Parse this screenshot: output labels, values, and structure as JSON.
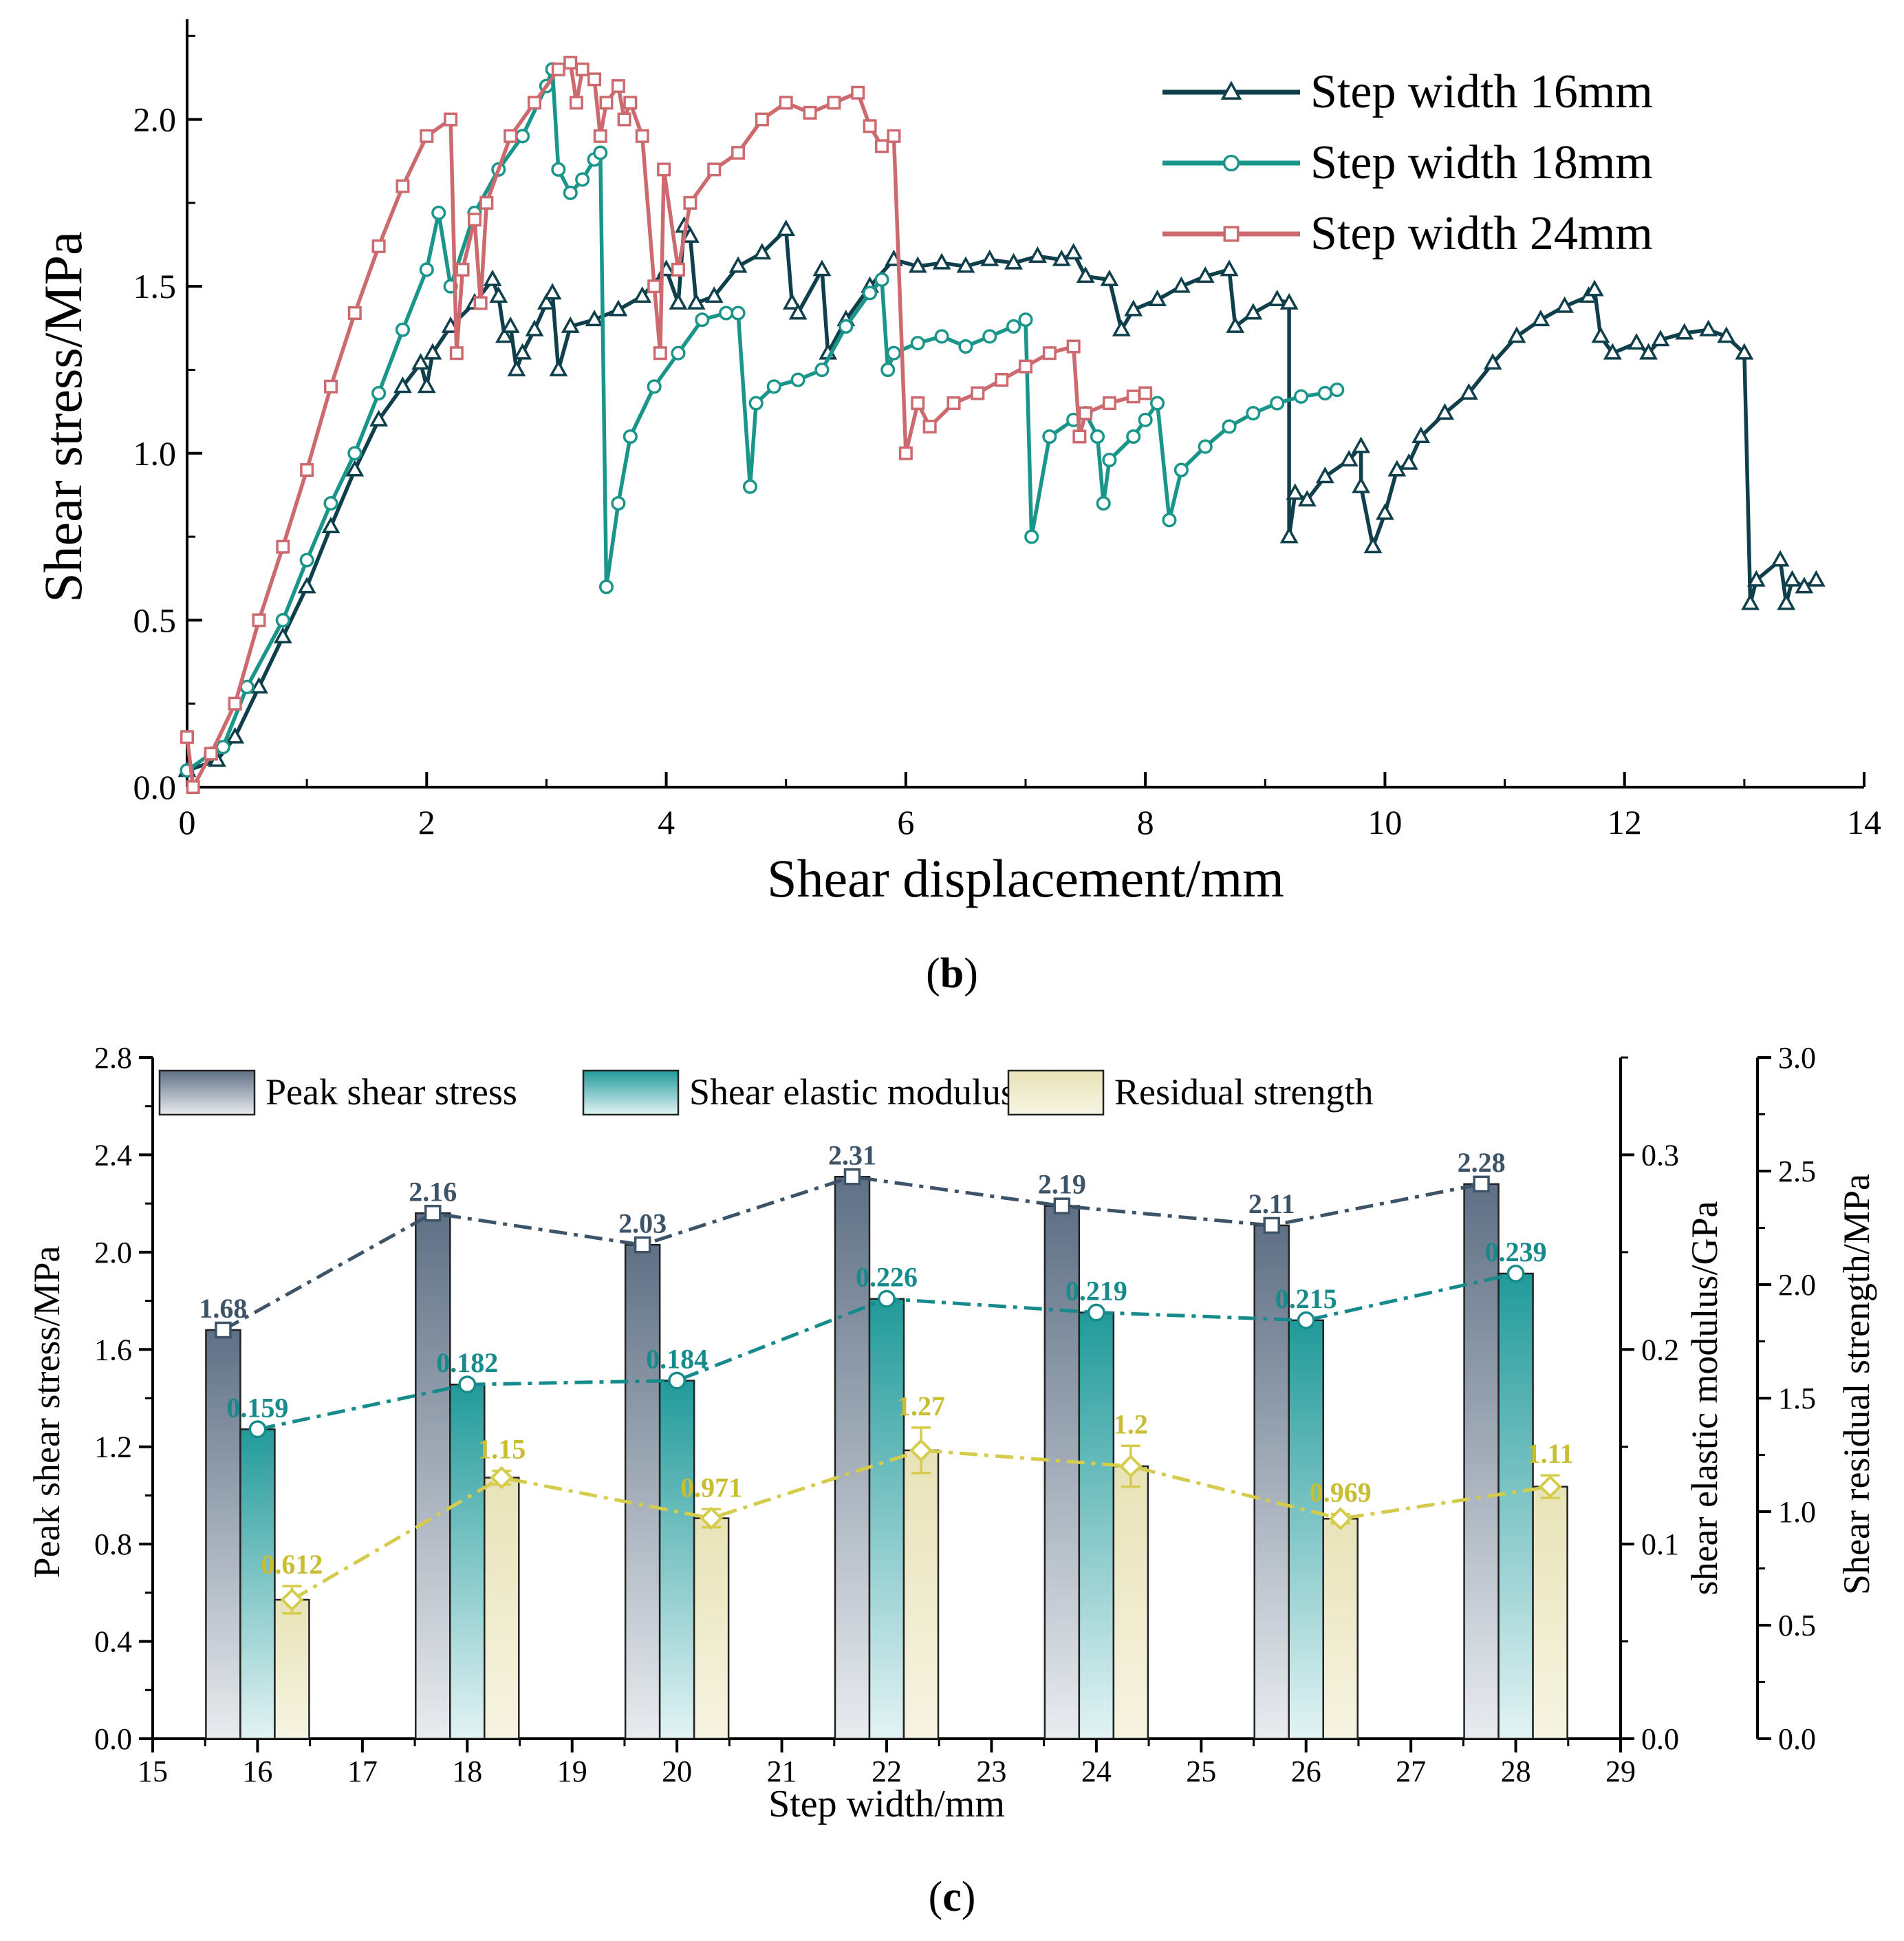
{
  "colors": {
    "s16": "#0e3f4a",
    "s18": "#1a9589",
    "s24": "#cd6a6f",
    "peak": "#3d5368",
    "modulus": "#178a8c",
    "residual": "#d6cc4c",
    "residual_label": "#c9bd32"
  },
  "chart_data": [
    {
      "type": "line",
      "panel_label": "b",
      "xlabel": "Shear displacement/mm",
      "ylabel": "Shear stress/MPa",
      "xlim": [
        0,
        14
      ],
      "ylim": [
        0,
        2.3
      ],
      "x_ticks": [
        "0",
        "2",
        "4",
        "6",
        "8",
        "10",
        "12",
        "14"
      ],
      "y_ticks": [
        "0.0",
        "0.5",
        "1.0",
        "1.5",
        "2.0"
      ],
      "legend_position": "top-right",
      "series": [
        {
          "name": "Step width 16mm",
          "marker": "triangle",
          "points": [
            [
              0,
              0.05
            ],
            [
              0.25,
              0.08
            ],
            [
              0.4,
              0.15
            ],
            [
              0.6,
              0.3
            ],
            [
              0.8,
              0.45
            ],
            [
              1.0,
              0.6
            ],
            [
              1.2,
              0.78
            ],
            [
              1.4,
              0.95
            ],
            [
              1.6,
              1.1
            ],
            [
              1.8,
              1.2
            ],
            [
              1.95,
              1.27
            ],
            [
              2.0,
              1.2
            ],
            [
              2.05,
              1.3
            ],
            [
              2.2,
              1.38
            ],
            [
              2.4,
              1.45
            ],
            [
              2.55,
              1.52
            ],
            [
              2.6,
              1.47
            ],
            [
              2.65,
              1.35
            ],
            [
              2.7,
              1.38
            ],
            [
              2.75,
              1.25
            ],
            [
              2.8,
              1.3
            ],
            [
              2.9,
              1.37
            ],
            [
              3.0,
              1.45
            ],
            [
              3.05,
              1.48
            ],
            [
              3.1,
              1.25
            ],
            [
              3.2,
              1.38
            ],
            [
              3.4,
              1.4
            ],
            [
              3.6,
              1.43
            ],
            [
              3.8,
              1.47
            ],
            [
              4.0,
              1.55
            ],
            [
              4.1,
              1.45
            ],
            [
              4.15,
              1.68
            ],
            [
              4.2,
              1.65
            ],
            [
              4.25,
              1.45
            ],
            [
              4.4,
              1.47
            ],
            [
              4.6,
              1.56
            ],
            [
              4.8,
              1.6
            ],
            [
              5.0,
              1.67
            ],
            [
              5.05,
              1.45
            ],
            [
              5.1,
              1.42
            ],
            [
              5.3,
              1.55
            ],
            [
              5.35,
              1.3
            ],
            [
              5.5,
              1.4
            ],
            [
              5.7,
              1.5
            ],
            [
              5.9,
              1.58
            ],
            [
              6.1,
              1.56
            ],
            [
              6.3,
              1.57
            ],
            [
              6.5,
              1.56
            ],
            [
              6.7,
              1.58
            ],
            [
              6.9,
              1.57
            ],
            [
              7.1,
              1.59
            ],
            [
              7.3,
              1.58
            ],
            [
              7.4,
              1.6
            ],
            [
              7.5,
              1.53
            ],
            [
              7.7,
              1.52
            ],
            [
              7.8,
              1.37
            ],
            [
              7.9,
              1.43
            ],
            [
              8.1,
              1.46
            ],
            [
              8.3,
              1.5
            ],
            [
              8.5,
              1.53
            ],
            [
              8.7,
              1.55
            ],
            [
              8.75,
              1.38
            ],
            [
              8.9,
              1.42
            ],
            [
              9.1,
              1.46
            ],
            [
              9.2,
              1.45
            ],
            [
              9.2,
              0.75
            ],
            [
              9.25,
              0.88
            ],
            [
              9.35,
              0.86
            ],
            [
              9.5,
              0.93
            ],
            [
              9.7,
              0.98
            ],
            [
              9.8,
              1.02
            ],
            [
              9.8,
              0.9
            ],
            [
              9.9,
              0.72
            ],
            [
              10.0,
              0.82
            ],
            [
              10.1,
              0.95
            ],
            [
              10.2,
              0.97
            ],
            [
              10.3,
              1.05
            ],
            [
              10.5,
              1.12
            ],
            [
              10.7,
              1.18
            ],
            [
              10.9,
              1.27
            ],
            [
              11.1,
              1.35
            ],
            [
              11.3,
              1.4
            ],
            [
              11.5,
              1.44
            ],
            [
              11.7,
              1.47
            ],
            [
              11.75,
              1.49
            ],
            [
              11.8,
              1.35
            ],
            [
              11.9,
              1.3
            ],
            [
              12.1,
              1.33
            ],
            [
              12.2,
              1.3
            ],
            [
              12.3,
              1.34
            ],
            [
              12.5,
              1.36
            ],
            [
              12.7,
              1.37
            ],
            [
              12.85,
              1.35
            ],
            [
              13.0,
              1.3
            ],
            [
              13.05,
              0.55
            ],
            [
              13.1,
              0.62
            ],
            [
              13.3,
              0.68
            ],
            [
              13.35,
              0.55
            ],
            [
              13.4,
              0.62
            ],
            [
              13.5,
              0.6
            ],
            [
              13.6,
              0.62
            ]
          ]
        },
        {
          "name": "Step width 18mm",
          "marker": "circle",
          "points": [
            [
              0,
              0.05
            ],
            [
              0.2,
              0.1
            ],
            [
              0.3,
              0.12
            ],
            [
              0.5,
              0.3
            ],
            [
              0.8,
              0.5
            ],
            [
              1.0,
              0.68
            ],
            [
              1.2,
              0.85
            ],
            [
              1.4,
              1.0
            ],
            [
              1.6,
              1.18
            ],
            [
              1.8,
              1.37
            ],
            [
              2.0,
              1.55
            ],
            [
              2.1,
              1.72
            ],
            [
              2.2,
              1.5
            ],
            [
              2.4,
              1.72
            ],
            [
              2.6,
              1.85
            ],
            [
              2.8,
              1.95
            ],
            [
              3.0,
              2.1
            ],
            [
              3.05,
              2.15
            ],
            [
              3.1,
              1.85
            ],
            [
              3.2,
              1.78
            ],
            [
              3.3,
              1.82
            ],
            [
              3.4,
              1.88
            ],
            [
              3.45,
              1.9
            ],
            [
              3.5,
              0.6
            ],
            [
              3.6,
              0.85
            ],
            [
              3.7,
              1.05
            ],
            [
              3.9,
              1.2
            ],
            [
              4.1,
              1.3
            ],
            [
              4.3,
              1.4
            ],
            [
              4.5,
              1.42
            ],
            [
              4.6,
              1.42
            ],
            [
              4.7,
              0.9
            ],
            [
              4.75,
              1.15
            ],
            [
              4.9,
              1.2
            ],
            [
              5.1,
              1.22
            ],
            [
              5.3,
              1.25
            ],
            [
              5.5,
              1.38
            ],
            [
              5.7,
              1.48
            ],
            [
              5.8,
              1.52
            ],
            [
              5.85,
              1.25
            ],
            [
              5.9,
              1.3
            ],
            [
              6.1,
              1.33
            ],
            [
              6.3,
              1.35
            ],
            [
              6.5,
              1.32
            ],
            [
              6.7,
              1.35
            ],
            [
              6.9,
              1.38
            ],
            [
              7.0,
              1.4
            ],
            [
              7.05,
              0.75
            ],
            [
              7.2,
              1.05
            ],
            [
              7.4,
              1.1
            ],
            [
              7.5,
              1.12
            ],
            [
              7.6,
              1.05
            ],
            [
              7.65,
              0.85
            ],
            [
              7.7,
              0.98
            ],
            [
              7.9,
              1.05
            ],
            [
              8.0,
              1.1
            ],
            [
              8.1,
              1.15
            ],
            [
              8.2,
              0.8
            ],
            [
              8.3,
              0.95
            ],
            [
              8.5,
              1.02
            ],
            [
              8.7,
              1.08
            ],
            [
              8.9,
              1.12
            ],
            [
              9.1,
              1.15
            ],
            [
              9.3,
              1.17
            ],
            [
              9.5,
              1.18
            ],
            [
              9.6,
              1.19
            ]
          ]
        },
        {
          "name": "Step width 24mm",
          "marker": "square",
          "points": [
            [
              0,
              0.15
            ],
            [
              0.05,
              0.0
            ],
            [
              0.2,
              0.1
            ],
            [
              0.4,
              0.25
            ],
            [
              0.6,
              0.5
            ],
            [
              0.8,
              0.72
            ],
            [
              1.0,
              0.95
            ],
            [
              1.2,
              1.2
            ],
            [
              1.4,
              1.42
            ],
            [
              1.6,
              1.62
            ],
            [
              1.8,
              1.8
            ],
            [
              2.0,
              1.95
            ],
            [
              2.2,
              2.0
            ],
            [
              2.25,
              1.3
            ],
            [
              2.3,
              1.55
            ],
            [
              2.4,
              1.7
            ],
            [
              2.45,
              1.45
            ],
            [
              2.5,
              1.75
            ],
            [
              2.7,
              1.95
            ],
            [
              2.9,
              2.05
            ],
            [
              3.1,
              2.15
            ],
            [
              3.2,
              2.17
            ],
            [
              3.25,
              2.05
            ],
            [
              3.3,
              2.15
            ],
            [
              3.4,
              2.12
            ],
            [
              3.45,
              1.95
            ],
            [
              3.5,
              2.05
            ],
            [
              3.6,
              2.1
            ],
            [
              3.65,
              2.0
            ],
            [
              3.7,
              2.05
            ],
            [
              3.8,
              1.95
            ],
            [
              3.9,
              1.5
            ],
            [
              3.95,
              1.3
            ],
            [
              3.98,
              1.85
            ],
            [
              4.1,
              1.55
            ],
            [
              4.2,
              1.75
            ],
            [
              4.4,
              1.85
            ],
            [
              4.6,
              1.9
            ],
            [
              4.8,
              2.0
            ],
            [
              5.0,
              2.05
            ],
            [
              5.2,
              2.02
            ],
            [
              5.4,
              2.05
            ],
            [
              5.6,
              2.08
            ],
            [
              5.7,
              1.98
            ],
            [
              5.8,
              1.92
            ],
            [
              5.9,
              1.95
            ],
            [
              6.0,
              1.0
            ],
            [
              6.1,
              1.15
            ],
            [
              6.2,
              1.08
            ],
            [
              6.4,
              1.15
            ],
            [
              6.6,
              1.18
            ],
            [
              6.8,
              1.22
            ],
            [
              7.0,
              1.26
            ],
            [
              7.2,
              1.3
            ],
            [
              7.4,
              1.32
            ],
            [
              7.45,
              1.05
            ],
            [
              7.5,
              1.12
            ],
            [
              7.7,
              1.15
            ],
            [
              7.9,
              1.17
            ],
            [
              8.0,
              1.18
            ]
          ]
        }
      ]
    },
    {
      "type": "bar",
      "panel_label": "c",
      "xlabel": "Step width/mm",
      "x_ticks": [
        "15",
        "16",
        "17",
        "18",
        "19",
        "20",
        "21",
        "22",
        "23",
        "24",
        "25",
        "26",
        "27",
        "28",
        "29"
      ],
      "categories": [
        "16",
        "18",
        "20",
        "22",
        "24",
        "26",
        "28"
      ],
      "x": [
        16,
        18,
        20,
        22,
        24,
        26,
        28
      ],
      "axes": {
        "left": {
          "label": "Peak shear stress/MPa",
          "range": [
            0,
            2.8
          ],
          "ticks": [
            "0.0",
            "0.4",
            "0.8",
            "1.2",
            "1.6",
            "2.0",
            "2.4",
            "2.8"
          ]
        },
        "right1": {
          "label": "shear elastic modulus/GPa",
          "range": [
            0,
            0.35
          ],
          "ticks": [
            "0.0",
            "0.1",
            "0.2",
            "0.3"
          ]
        },
        "right2": {
          "label": "Shear residual strength/MPa",
          "range": [
            0,
            3.0
          ],
          "ticks": [
            "0.0",
            "0.5",
            "1.0",
            "1.5",
            "2.0",
            "2.5",
            "3.0"
          ]
        }
      },
      "legend_position": "top",
      "series": [
        {
          "name": "Peak shear stress",
          "axis": "left",
          "values": [
            1.68,
            2.16,
            2.03,
            2.31,
            2.19,
            2.11,
            2.28
          ],
          "labels": [
            "1.68",
            "2.16",
            "2.03",
            "2.31",
            "2.19",
            "2.11",
            "2.28"
          ],
          "error": [
            0,
            0,
            0,
            0,
            0,
            0,
            0
          ]
        },
        {
          "name": "Shear elastic modulus",
          "axis": "right1",
          "values": [
            0.159,
            0.182,
            0.184,
            0.226,
            0.219,
            0.215,
            0.239
          ],
          "labels": [
            "0.159",
            "0.182",
            "0.184",
            "0.226",
            "0.219",
            "0.215",
            "0.239"
          ],
          "error": [
            0,
            0,
            0,
            0,
            0,
            0,
            0
          ]
        },
        {
          "name": "Residual strength",
          "axis": "right2",
          "values": [
            0.612,
            1.15,
            0.971,
            1.27,
            1.2,
            0.969,
            1.11
          ],
          "labels": [
            "0.612",
            "1.15",
            "0.971",
            "1.27",
            "1.2",
            "0.969",
            "1.11"
          ],
          "error": [
            0.06,
            0.03,
            0.04,
            0.1,
            0.09,
            0.02,
            0.05
          ]
        }
      ]
    }
  ]
}
